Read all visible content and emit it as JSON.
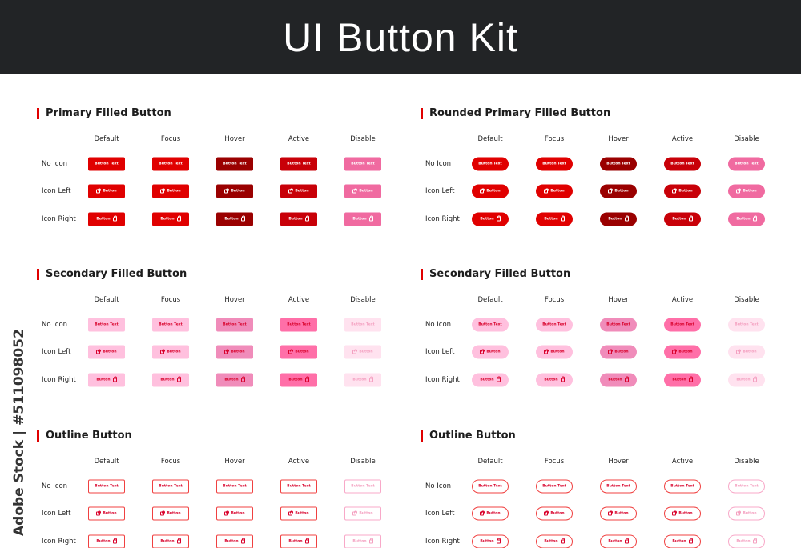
{
  "title": "UI Button Kit",
  "watermark": "Adobe Stock | #511098052",
  "states": [
    "Default",
    "Focus",
    "Hover",
    "Active",
    "Disable"
  ],
  "rows": [
    "No Icon",
    "Icon Left",
    "Icon Right"
  ],
  "button_text": "Button Text",
  "button_short": "Button",
  "icon": "shopping-bag-icon",
  "sections": [
    {
      "title": "Primary Filled Button",
      "kind": "primary",
      "rounded": false
    },
    {
      "title": "Rounded Primary Filled Button",
      "kind": "primary",
      "rounded": true
    },
    {
      "title": "Secondary Filled Button",
      "kind": "secondary",
      "rounded": false
    },
    {
      "title": "Secondary Filled Button",
      "kind": "secondary",
      "rounded": true
    },
    {
      "title": "Outline Button",
      "kind": "outline",
      "rounded": false
    },
    {
      "title": "Outline Button",
      "kind": "outline",
      "rounded": true
    }
  ],
  "colors": {
    "header_bg": "#222426",
    "accent": "#e00000",
    "primary": {
      "bg": [
        "#e00000",
        "#e00000",
        "#9a0000",
        "#c80008",
        "#f06aa0"
      ],
      "fg": [
        "#fff",
        "#fff",
        "#fff",
        "#fff",
        "#fff"
      ]
    },
    "secondary": {
      "bg": [
        "#ffc0de",
        "#ffc0de",
        "#f08cba",
        "#ff6fa8",
        "#ffe2ef"
      ],
      "fg": [
        "#d8002a",
        "#d8002a",
        "#d8002a",
        "#d8002a",
        "#f4a0c0"
      ]
    },
    "outline": {
      "border": [
        "#f04040",
        "#f04040",
        "#f04040",
        "#f04040",
        "#f8a8c8"
      ],
      "fg": [
        "#d8002a",
        "#d8002a",
        "#d8002a",
        "#d8002a",
        "#f4a0c0"
      ]
    }
  }
}
